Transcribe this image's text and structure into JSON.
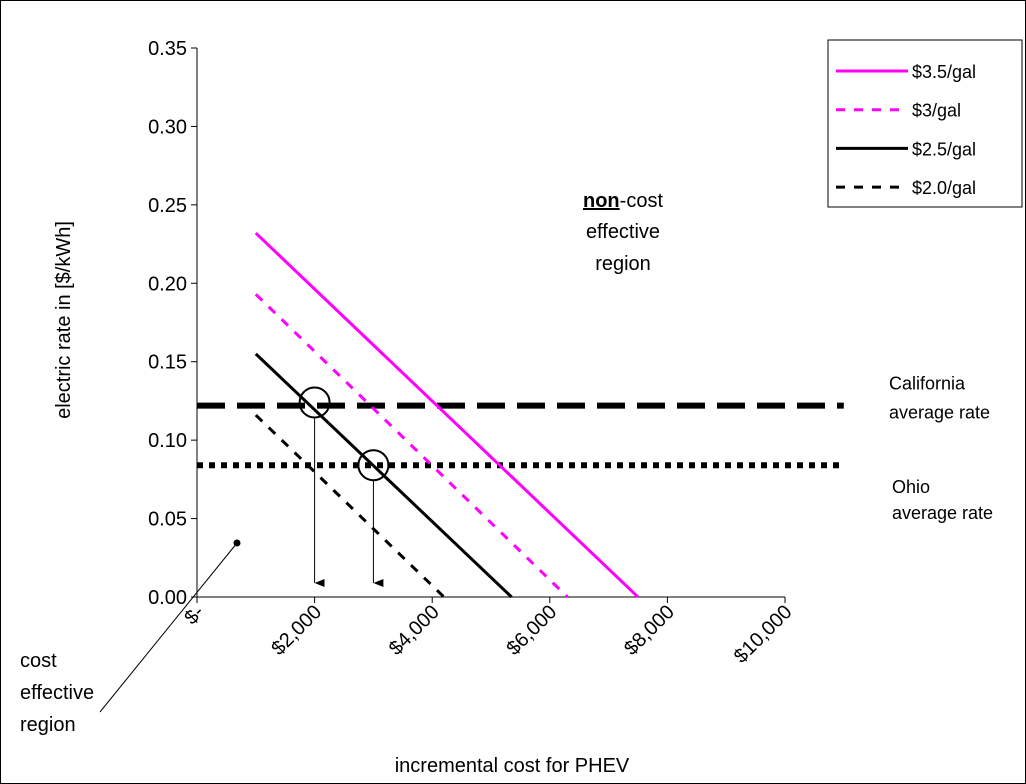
{
  "chart_data": {
    "type": "line",
    "xlabel": "incremental cost for PHEV",
    "ylabel": "electric rate in [$/kWh]",
    "xlim": [
      0,
      10000
    ],
    "xticks": [
      {
        "value": 0,
        "label": "$-"
      },
      {
        "value": 2000,
        "label": "$2,000"
      },
      {
        "value": 4000,
        "label": "$4,000"
      },
      {
        "value": 6000,
        "label": "$6,000"
      },
      {
        "value": 8000,
        "label": "$8,000"
      },
      {
        "value": 10000,
        "label": "$10,000"
      }
    ],
    "ylim": [
      0,
      0.35
    ],
    "yticks": [
      {
        "value": 0,
        "label": "0.00"
      },
      0.05,
      {
        "value": 0.1,
        "label": "0.10"
      },
      0.15,
      {
        "value": 0.2,
        "label": "0.20"
      },
      0.25,
      {
        "value": 0.3,
        "label": "0.30"
      },
      0.35
    ],
    "series": [
      {
        "name": "$3.5/gal",
        "color": "#ff00ff",
        "dash": "solid",
        "x": [
          1000,
          7500
        ],
        "values": [
          0.232,
          0
        ]
      },
      {
        "name": "$3/gal",
        "color": "#ff00ff",
        "dash": "dashed",
        "x": [
          1000,
          6300
        ],
        "values": [
          0.193,
          0
        ]
      },
      {
        "name": "$2.5/gal",
        "color": "#000000",
        "dash": "solid",
        "x": [
          1000,
          5350
        ],
        "values": [
          0.155,
          0
        ]
      },
      {
        "name": "$2.0/gal",
        "color": "#000000",
        "dash": "dashed",
        "x": [
          1000,
          4200
        ],
        "values": [
          0.116,
          0
        ]
      }
    ],
    "reference_lines": [
      {
        "x": [
          0,
          11000
        ],
        "values": [
          0.122,
          0.122
        ],
        "color": "#000000",
        "dash": "long-dashed",
        "label": [
          "California",
          "average rate"
        ]
      },
      {
        "x": [
          0,
          11000
        ],
        "values": [
          0.084,
          0.084
        ],
        "color": "#000000",
        "dash": "dotted",
        "label": [
          "Ohio",
          "average rate"
        ]
      }
    ],
    "highlights": [
      {
        "x": 2000,
        "y": 0.124
      },
      {
        "x": 3000,
        "y": 0.084
      }
    ],
    "region_labels": {
      "non_cost_effective": {
        "emphasis": "non",
        "suffix": "-cost",
        "lines": [
          "effective",
          "region"
        ]
      },
      "cost_effective": [
        "cost",
        "effective",
        "region"
      ]
    },
    "legend": "upper right"
  }
}
